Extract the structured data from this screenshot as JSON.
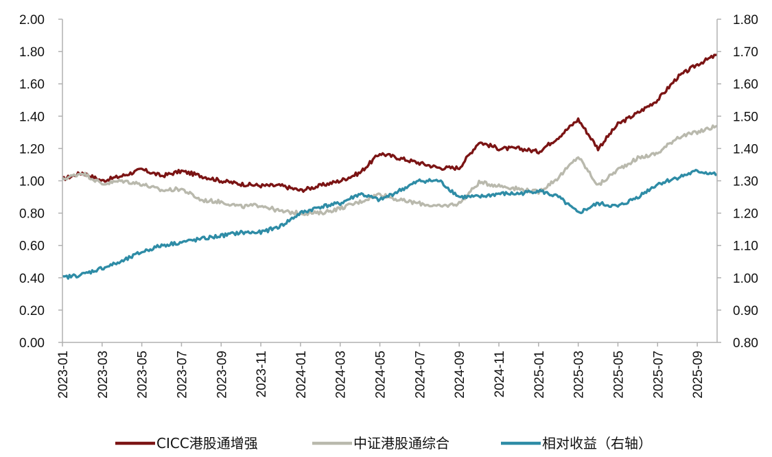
{
  "chart_data": {
    "type": "line",
    "x": [
      "2023-01",
      "2023-02",
      "2023-03",
      "2023-04",
      "2023-05",
      "2023-06",
      "2023-07",
      "2023-08",
      "2023-09",
      "2023-10",
      "2023-11",
      "2023-12",
      "2024-01",
      "2024-02",
      "2024-03",
      "2024-04",
      "2024-05",
      "2024-06",
      "2024-07",
      "2024-08",
      "2024-09",
      "2024-10",
      "2024-11",
      "2024-12",
      "2025-01",
      "2025-02",
      "2025-03",
      "2025-04",
      "2025-05",
      "2025-06",
      "2025-07",
      "2025-08",
      "2025-09",
      "2025-10"
    ],
    "x_tick_labels": [
      "2023-01",
      "2023-03",
      "2023-05",
      "2023-07",
      "2023-09",
      "2023-11",
      "2024-01",
      "2024-03",
      "2024-05",
      "2024-07",
      "2024-09",
      "2024-11",
      "2025-01",
      "2025-03",
      "2025-05",
      "2025-07",
      "2025-09"
    ],
    "y_left": {
      "ticks": [
        "0.00",
        "0.20",
        "0.40",
        "0.60",
        "0.80",
        "1.00",
        "1.20",
        "1.40",
        "1.60",
        "1.80",
        "2.00"
      ],
      "range": [
        0,
        2.0
      ]
    },
    "y_right": {
      "ticks": [
        "0.80",
        "0.90",
        "1.00",
        "1.10",
        "1.20",
        "1.30",
        "1.40",
        "1.50",
        "1.60",
        "1.70",
        "1.80"
      ],
      "range": [
        0.8,
        1.8
      ]
    },
    "series": [
      {
        "name": "CICC港股通增强",
        "color": "#7b1414",
        "axis": "left",
        "values": [
          1.01,
          1.05,
          1.0,
          1.03,
          1.07,
          1.03,
          1.06,
          1.03,
          1.0,
          0.98,
          0.97,
          0.97,
          0.94,
          0.97,
          1.0,
          1.05,
          1.17,
          1.14,
          1.11,
          1.08,
          1.08,
          1.24,
          1.2,
          1.2,
          1.18,
          1.27,
          1.38,
          1.2,
          1.35,
          1.42,
          1.5,
          1.64,
          1.72,
          1.78
        ]
      },
      {
        "name": "中证港股通综合",
        "color": "#b9b9ad",
        "axis": "left",
        "values": [
          1.01,
          1.05,
          0.98,
          1.0,
          0.98,
          0.94,
          0.95,
          0.88,
          0.87,
          0.84,
          0.85,
          0.81,
          0.8,
          0.8,
          0.83,
          0.87,
          0.92,
          0.88,
          0.86,
          0.84,
          0.86,
          0.99,
          0.97,
          0.95,
          0.93,
          1.02,
          1.15,
          0.97,
          1.07,
          1.14,
          1.17,
          1.27,
          1.3,
          1.34
        ]
      },
      {
        "name": "相对收益（右轴）",
        "color": "#2e8ca6",
        "axis": "right",
        "values": [
          1.0,
          1.01,
          1.03,
          1.05,
          1.08,
          1.1,
          1.11,
          1.12,
          1.13,
          1.14,
          1.14,
          1.16,
          1.2,
          1.22,
          1.23,
          1.26,
          1.24,
          1.27,
          1.3,
          1.3,
          1.25,
          1.25,
          1.26,
          1.26,
          1.27,
          1.25,
          1.2,
          1.23,
          1.22,
          1.25,
          1.29,
          1.31,
          1.33,
          1.32
        ]
      }
    ]
  }
}
